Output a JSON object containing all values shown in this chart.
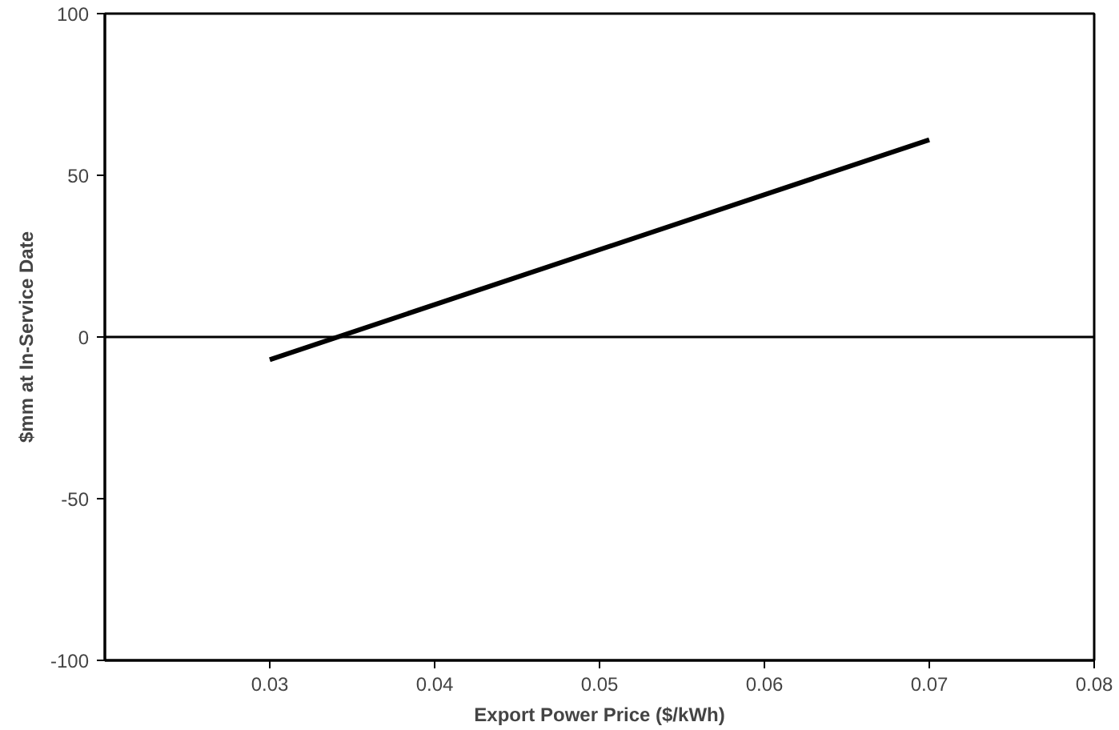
{
  "chart_data": {
    "type": "line",
    "xlabel": "Export Power Price ($/kWh)",
    "ylabel": "$mm at In-Service Date",
    "x": [
      0.03,
      0.07
    ],
    "series": [
      {
        "color": "#000000",
        "values": [
          -7,
          61
        ]
      }
    ],
    "xlim": [
      0.02,
      0.08
    ],
    "xticks": [
      0.03,
      0.04,
      0.05,
      0.06,
      0.07,
      0.08
    ],
    "ylim": [
      -100,
      100
    ],
    "yticks": [
      -100,
      -50,
      0,
      50,
      100
    ],
    "ref_lines": [
      {
        "axis": "y",
        "value": 0,
        "color": "#000000"
      }
    ],
    "grid": false,
    "marker": "none",
    "line_style": "solid"
  }
}
